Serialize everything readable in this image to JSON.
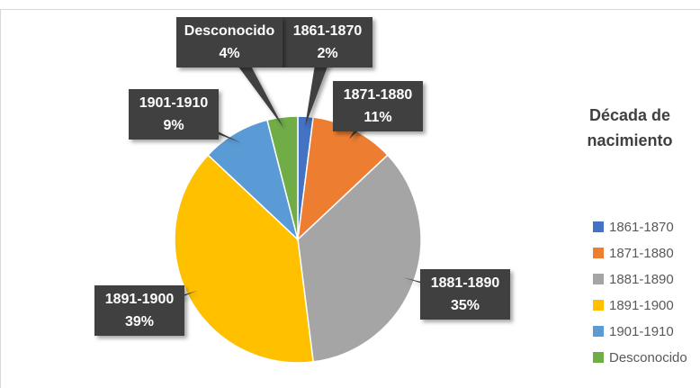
{
  "chart_data": {
    "type": "pie",
    "legend_title": "Década de nacimiento",
    "categories": [
      "1861-1870",
      "1871-1880",
      "1881-1890",
      "1891-1900",
      "1901-1910",
      "Desconocido"
    ],
    "values": [
      2,
      11,
      35,
      39,
      9,
      4
    ],
    "value_labels": [
      "2%",
      "11%",
      "35%",
      "39%",
      "9%",
      "4%"
    ],
    "colors": [
      "#4472c4",
      "#ed7d31",
      "#a5a5a5",
      "#ffc000",
      "#5b9bd5",
      "#70ad47"
    ],
    "legend": "right"
  }
}
